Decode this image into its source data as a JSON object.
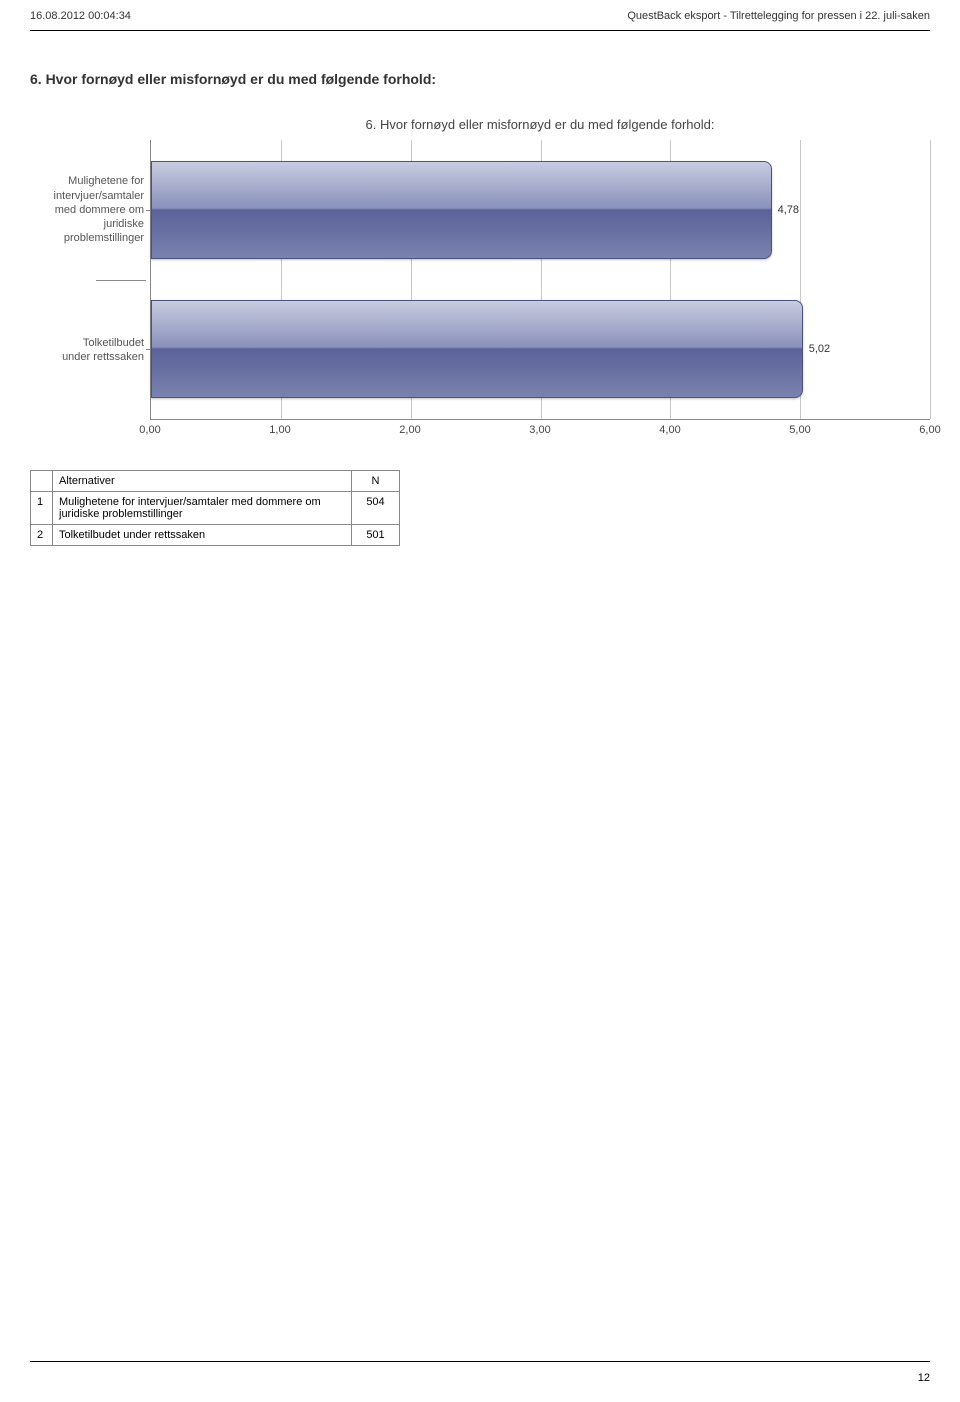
{
  "header": {
    "timestamp": "16.08.2012 00:04:34",
    "title_right": "QuestBack eksport - Tilrettelegging for pressen i 22. juli-saken"
  },
  "section": {
    "title": "6. Hvor fornøyd eller misfornøyd er du med følgende forhold:"
  },
  "chart": {
    "type": "bar-horizontal",
    "title": "6. Hvor fornøyd eller misfornøyd er du med følgende forhold:",
    "x_min": 0.0,
    "x_max": 6.0,
    "x_ticks": [
      "0,00",
      "1,00",
      "2,00",
      "3,00",
      "4,00",
      "5,00",
      "6,00"
    ],
    "grid_color": "#c8c8c8",
    "axis_color": "#888888",
    "bar_fill_top": "#c8cce0",
    "bar_fill_mid": "#7a82ae",
    "bar_fill_dark": "#5a6299",
    "bar_border": "#4a5280",
    "label_fontsize": 11,
    "background_color": "#ffffff",
    "series": [
      {
        "y_label_lines": [
          "Mulighetene for",
          "intervjuer/samtaler",
          "med dommere om",
          "juridiske",
          "problemstillinger"
        ],
        "value": 4.78,
        "value_label": "4,78"
      },
      {
        "y_label_lines": [
          "Tolketilbudet",
          "under rettssaken"
        ],
        "value": 5.02,
        "value_label": "5,02"
      }
    ]
  },
  "table": {
    "columns": [
      "",
      "Alternativer",
      "N"
    ],
    "rows": [
      {
        "idx": "1",
        "label": "Mulighetene for intervjuer/samtaler med dommere om juridiske problemstillinger",
        "n": "504"
      },
      {
        "idx": "2",
        "label": "Tolketilbudet under rettssaken",
        "n": "501"
      }
    ]
  },
  "footer": {
    "page": "12"
  }
}
